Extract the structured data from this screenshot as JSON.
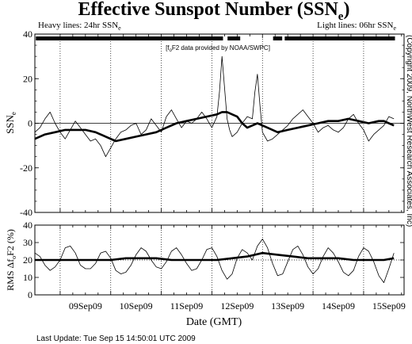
{
  "title": "Effective Sunspot Number (SSN",
  "title_sub": "e",
  "title_close": ")",
  "heavy_label": "Heavy lines:  24hr SSN",
  "light_label": "Light lines:  06hr SSN",
  "label_sub": "e",
  "provider_note": "[f₀F2 data provided by NOAA/SWPC]",
  "provider_parts": {
    "pre": "[f",
    "sub": "o",
    "post": "F2 data provided by NOAA/SWPC]"
  },
  "copyright": "(Copyright 2009, NorthWest Research Associates, Inc)",
  "xlabel": "Date (GMT)",
  "last_update": "Last Update: Tue Sep 15 14:50:01 UTC 2009",
  "colors": {
    "line": "#000000",
    "background": "#ffffff"
  },
  "chart_data": [
    {
      "type": "line",
      "panel": "top",
      "ylabel": "SSN",
      "ylabel_sub": "e",
      "ylim": [
        -40,
        40
      ],
      "yticks": [
        40,
        20,
        0,
        -20,
        -40
      ],
      "xlim": [
        8.5,
        15.8
      ],
      "x_unit": "days of September 2009 (GMT)",
      "date_ticks": [
        9,
        10,
        11,
        12,
        13,
        14,
        15
      ],
      "date_tick_labels": [
        "09Sep09",
        "10Sep09",
        "11Sep09",
        "12Sep09",
        "13Sep09",
        "14Sep09",
        "15Sep09"
      ],
      "data_bars": [
        [
          8.52,
          12.22
        ],
        [
          12.31,
          12.56
        ],
        [
          13.21,
          13.39
        ],
        [
          13.44,
          15.62
        ]
      ],
      "series": [
        {
          "style": "heavy",
          "x": [
            8.5,
            8.7,
            8.9,
            9.1,
            9.3,
            9.5,
            9.7,
            9.9,
            10.1,
            10.3,
            10.5,
            10.7,
            10.9,
            11.1,
            11.3,
            11.5,
            11.7,
            11.9,
            12.1,
            12.2,
            12.3,
            12.4,
            12.5,
            12.6,
            12.7,
            12.8,
            12.9,
            13.0,
            13.1,
            13.2,
            13.3,
            13.5,
            13.7,
            13.9,
            14.1,
            14.3,
            14.5,
            14.7,
            14.9,
            15.1,
            15.3,
            15.4,
            15.5,
            15.6
          ],
          "y": [
            -7,
            -5,
            -4,
            -3,
            -3,
            -3,
            -4,
            -6,
            -8,
            -7,
            -6,
            -5,
            -4,
            -2,
            0,
            1,
            2,
            3,
            4,
            5,
            5,
            4,
            3,
            0,
            -2,
            -1,
            0,
            -1,
            -2,
            -3,
            -4,
            -3,
            -2,
            -1,
            0,
            1,
            1,
            2,
            1,
            0,
            1,
            1,
            0,
            -1
          ]
        },
        {
          "style": "light",
          "x": [
            8.5,
            8.6,
            8.7,
            8.8,
            8.9,
            9.0,
            9.1,
            9.2,
            9.3,
            9.4,
            9.5,
            9.6,
            9.7,
            9.8,
            9.9,
            10.0,
            10.1,
            10.2,
            10.3,
            10.4,
            10.5,
            10.6,
            10.7,
            10.8,
            10.9,
            11.0,
            11.1,
            11.2,
            11.3,
            11.4,
            11.5,
            11.6,
            11.7,
            11.8,
            11.9,
            12.0,
            12.1,
            12.15,
            12.2,
            12.25,
            12.3,
            12.35,
            12.4,
            12.5,
            12.6,
            12.7,
            12.8,
            12.85,
            12.9,
            12.95,
            13.0,
            13.1,
            13.2,
            13.3,
            13.4,
            13.5,
            13.6,
            13.7,
            13.8,
            13.9,
            14.0,
            14.1,
            14.2,
            14.3,
            14.4,
            14.5,
            14.6,
            14.7,
            14.8,
            14.9,
            15.0,
            15.1,
            15.2,
            15.3,
            15.4,
            15.5,
            15.6
          ],
          "y": [
            -4,
            -2,
            2,
            5,
            0,
            -4,
            -7,
            -3,
            1,
            -2,
            -5,
            -8,
            -7,
            -10,
            -15,
            -11,
            -7,
            -4,
            -3,
            -1,
            0,
            -5,
            -3,
            2,
            -1,
            -4,
            3,
            6,
            2,
            -2,
            1,
            0,
            2,
            5,
            2,
            -2,
            3,
            14,
            30,
            16,
            2,
            -3,
            -6,
            -4,
            0,
            3,
            2,
            14,
            22,
            8,
            -4,
            -8,
            -7,
            -5,
            -3,
            -1,
            2,
            4,
            6,
            3,
            0,
            -4,
            -2,
            -1,
            -3,
            -4,
            -2,
            2,
            4,
            0,
            -3,
            -8,
            -5,
            -3,
            -1,
            3,
            2
          ]
        }
      ]
    },
    {
      "type": "line",
      "panel": "bottom",
      "ylabel": "RMS ΔfₒF2 (%)",
      "ylabel_parts": {
        "pre": "RMS Δf",
        "sub": "o",
        "post": "F2 (%)"
      },
      "ylim": [
        0,
        40
      ],
      "yticks": [
        40,
        30,
        20,
        10,
        0
      ],
      "xlim": [
        8.5,
        15.8
      ],
      "dotted_level": 20,
      "series": [
        {
          "style": "heavy",
          "x": [
            8.5,
            8.8,
            9.1,
            9.4,
            9.7,
            10.0,
            10.3,
            10.6,
            10.9,
            11.2,
            11.5,
            11.8,
            12.1,
            12.4,
            12.7,
            13.0,
            13.3,
            13.6,
            13.9,
            14.2,
            14.5,
            14.8,
            15.1,
            15.4,
            15.6
          ],
          "y": [
            20,
            20,
            20,
            20,
            20,
            20,
            21,
            21,
            21,
            20,
            20,
            20,
            20,
            21,
            22,
            24,
            23,
            22,
            21,
            21,
            21,
            20,
            20,
            20,
            21
          ]
        },
        {
          "style": "light",
          "x": [
            8.5,
            8.6,
            8.7,
            8.8,
            8.9,
            9.0,
            9.1,
            9.2,
            9.3,
            9.4,
            9.5,
            9.6,
            9.7,
            9.8,
            9.9,
            10.0,
            10.1,
            10.2,
            10.3,
            10.4,
            10.5,
            10.6,
            10.7,
            10.8,
            10.9,
            11.0,
            11.1,
            11.2,
            11.3,
            11.4,
            11.5,
            11.6,
            11.7,
            11.8,
            11.9,
            12.0,
            12.1,
            12.2,
            12.3,
            12.4,
            12.5,
            12.6,
            12.7,
            12.8,
            12.9,
            13.0,
            13.1,
            13.2,
            13.3,
            13.4,
            13.5,
            13.6,
            13.7,
            13.8,
            13.9,
            14.0,
            14.1,
            14.2,
            14.3,
            14.4,
            14.5,
            14.6,
            14.7,
            14.8,
            14.9,
            15.0,
            15.1,
            15.2,
            15.3,
            15.4,
            15.5,
            15.6
          ],
          "y": [
            24,
            22,
            17,
            14,
            16,
            20,
            27,
            28,
            24,
            17,
            15,
            15,
            18,
            24,
            25,
            21,
            14,
            12,
            13,
            17,
            23,
            27,
            25,
            20,
            16,
            15,
            19,
            25,
            27,
            23,
            18,
            14,
            15,
            20,
            26,
            27,
            22,
            14,
            9,
            12,
            21,
            26,
            24,
            20,
            28,
            32,
            27,
            18,
            11,
            12,
            19,
            26,
            28,
            23,
            16,
            12,
            15,
            22,
            27,
            24,
            19,
            13,
            11,
            14,
            22,
            27,
            25,
            19,
            11,
            7,
            15,
            24
          ]
        }
      ]
    }
  ]
}
